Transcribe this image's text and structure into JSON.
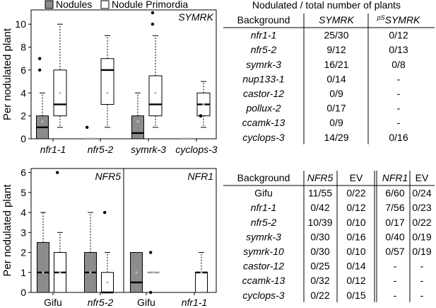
{
  "chart_data": [
    {
      "type": "boxplot",
      "panel_label": "SYMRK",
      "ylabel": "Per nodulated plant",
      "ylim": [
        0,
        11
      ],
      "yticks": [
        0,
        2,
        4,
        6,
        8,
        10
      ],
      "legend": {
        "placement": "top",
        "items": [
          "Nodules",
          "Nodule Primordia"
        ]
      },
      "categories": [
        "nfr1-1",
        "nfr5-2",
        "symrk-3",
        "cyclops-3"
      ],
      "series": [
        {
          "name": "Nodules",
          "color": "#8c8c8c",
          "boxes": [
            {
              "min": 0,
              "q1": 0,
              "median": 1,
              "q3": 2,
              "max": 4,
              "mean": 1.5,
              "outliers": [
                6,
                7
              ]
            },
            {
              "min": 0,
              "q1": 0,
              "median": 0,
              "q3": 0,
              "max": 0,
              "mean": null,
              "outliers": [
                1
              ]
            },
            {
              "min": 0,
              "q1": 0,
              "median": 0.5,
              "q3": 2,
              "max": 4,
              "mean": 1.5,
              "outliers": []
            },
            {
              "min": 0,
              "q1": 0,
              "median": 0,
              "q3": 0,
              "max": 0,
              "mean": null,
              "outliers": []
            }
          ]
        },
        {
          "name": "Nodule Primordia",
          "color": "#ffffff",
          "boxes": [
            {
              "min": 1,
              "q1": 2,
              "median": 3,
              "q3": 6,
              "max": 10,
              "mean": 4,
              "outliers": []
            },
            {
              "min": 1,
              "q1": 3,
              "median": 6,
              "q3": 7,
              "max": 9,
              "mean": 4,
              "outliers": []
            },
            {
              "min": 1,
              "q1": 2,
              "median": 3,
              "q3": 5.5,
              "max": 9,
              "mean": 4,
              "outliers": [
                10,
                11
              ]
            },
            {
              "min": 1,
              "q1": 2,
              "median": 3,
              "q3": 4,
              "max": 5,
              "mean": 3,
              "outliers": [
                2,
                2
              ]
            }
          ]
        }
      ]
    },
    {
      "type": "boxplot",
      "panel_label": "NFR5",
      "ylabel": "Per nodulated plant",
      "ylim": [
        0,
        6.2
      ],
      "yticks": [
        0,
        1,
        2,
        3,
        4,
        5,
        6
      ],
      "categories": [
        "Gifu",
        "nfr5-2"
      ],
      "series": [
        {
          "name": "Nodules",
          "color": "#8c8c8c",
          "boxes": [
            {
              "min": 0,
              "q1": 0,
              "median": 1,
              "q3": 2.5,
              "max": 4,
              "mean": 1,
              "outliers": []
            },
            {
              "min": 0,
              "q1": 0,
              "median": 1,
              "q3": 2,
              "max": 4,
              "mean": 1,
              "outliers": []
            }
          ]
        },
        {
          "name": "Nodule Primordia",
          "color": "#ffffff",
          "boxes": [
            {
              "min": 0,
              "q1": 0,
              "median": 1,
              "q3": 2,
              "max": 3,
              "mean": 1,
              "outliers": [
                6
              ]
            },
            {
              "min": 0,
              "q1": 0,
              "median": 0,
              "q3": 1,
              "max": 2,
              "mean": 0.5,
              "outliers": [
                4
              ]
            }
          ]
        }
      ]
    },
    {
      "type": "boxplot",
      "panel_label": "NFR1",
      "ylim": [
        0,
        6.2
      ],
      "categories": [
        "Gifu",
        "nfr1-1"
      ],
      "series": [
        {
          "name": "Nodules",
          "color": "#8c8c8c",
          "boxes": [
            {
              "min": 0,
              "q1": 0,
              "median": 0.5,
              "q3": 2,
              "max": 2,
              "mean": 1,
              "outliers": []
            },
            null
          ]
        },
        {
          "name": "Nodule Primordia",
          "color": "#ffffff",
          "boxes": [
            {
              "min": 1,
              "q1": 1,
              "median": 1,
              "q3": 1,
              "max": 1,
              "mean": 1,
              "outliers": [
                0,
                2
              ]
            },
            {
              "min": 0,
              "q1": 0,
              "median": 1,
              "q3": 1,
              "max": 2,
              "mean": 1,
              "outliers": []
            }
          ]
        }
      ]
    },
    {
      "type": "table",
      "title": "Nodulated / total number of plants",
      "columns": [
        "Background",
        "SYMRK",
        "pS SYMRK"
      ],
      "rows": [
        [
          "nfr1-1",
          "25/30",
          "0/12"
        ],
        [
          "nfr5-2",
          "9/12",
          "0/13"
        ],
        [
          "symrk-3",
          "16/21",
          "0/8"
        ],
        [
          "nup133-1",
          "0/14",
          "-"
        ],
        [
          "castor-12",
          "0/9",
          "-"
        ],
        [
          "pollux-2",
          "0/17",
          "-"
        ],
        [
          "ccamk-13",
          "0/9",
          "-"
        ],
        [
          "cyclops-3",
          "14/29",
          "0/16"
        ]
      ]
    },
    {
      "type": "table",
      "columns": [
        "Background",
        "NFR5",
        "EV",
        "NFR1",
        "EV"
      ],
      "rows": [
        [
          "Gifu",
          "11/55",
          "0/22",
          "6/60",
          "0/24"
        ],
        [
          "nfr1-1",
          "0/42",
          "0/12",
          "7/56",
          "0/23"
        ],
        [
          "nfr5-2",
          "10/39",
          "0/10",
          "0/17",
          "0/22"
        ],
        [
          "symrk-3",
          "0/30",
          "0/16",
          "0/40",
          "0/19"
        ],
        [
          "symrk-10",
          "0/30",
          "0/10",
          "0/57",
          "0/19"
        ],
        [
          "castor-12",
          "0/25",
          "0/14",
          "-",
          "-"
        ],
        [
          "ccamk-13",
          "0/32",
          "0/12",
          "-",
          "-"
        ],
        [
          "cyclops-3",
          "0/22",
          "0/15",
          "-",
          "-"
        ]
      ]
    }
  ]
}
